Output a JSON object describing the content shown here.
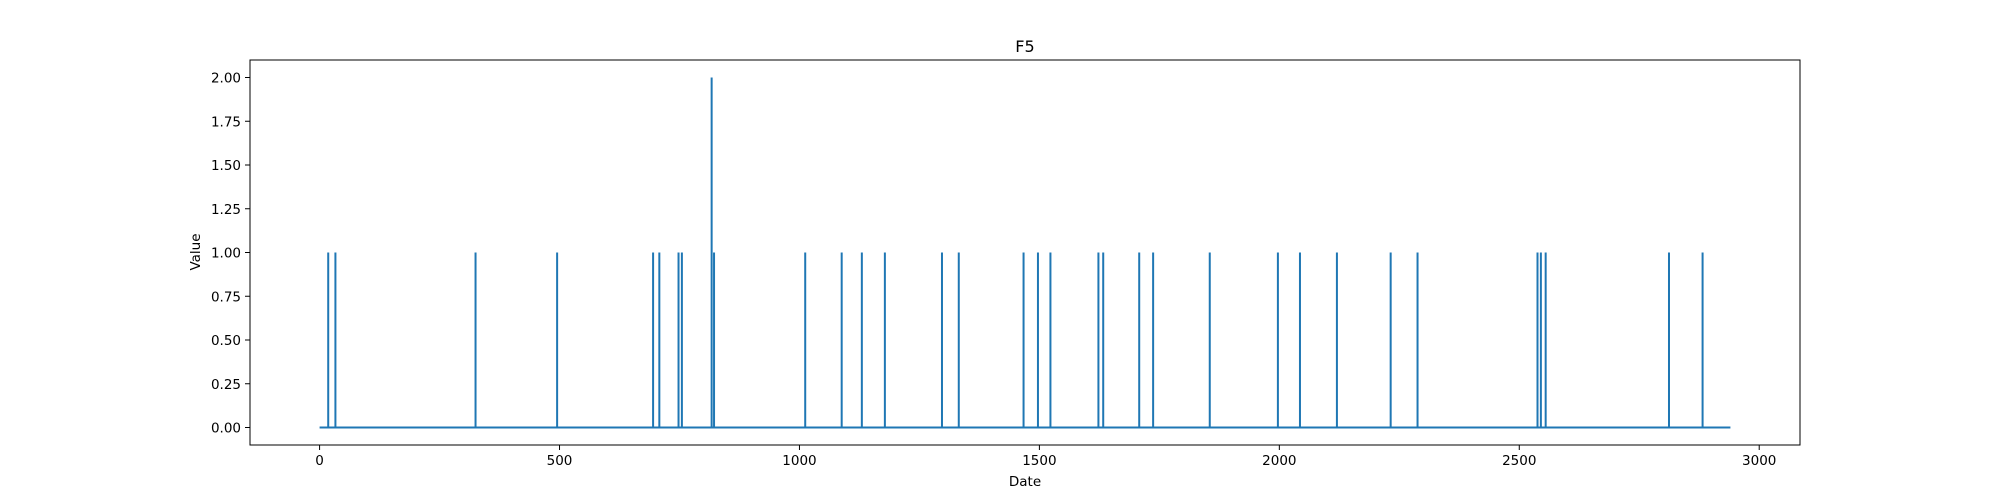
{
  "chart_data": {
    "type": "line",
    "title": "F5",
    "xlabel": "Date",
    "ylabel": "Value",
    "xlim": [
      -145,
      3085
    ],
    "ylim": [
      -0.1,
      2.1
    ],
    "xticks": [
      0,
      500,
      1000,
      1500,
      2000,
      2500,
      3000
    ],
    "yticks": [
      0.0,
      0.25,
      0.5,
      0.75,
      1.0,
      1.25,
      1.5,
      1.75,
      2.0
    ],
    "ytick_labels": [
      "0.00",
      "0.25",
      "0.50",
      "0.75",
      "1.00",
      "1.25",
      "1.50",
      "1.75",
      "2.00"
    ],
    "grid": false,
    "series": [
      {
        "color": "#1f77b4",
        "x_range": [
          0,
          2940
        ],
        "baseline": 0,
        "spikes": [
          {
            "x": 18,
            "value": 1
          },
          {
            "x": 33,
            "value": 1
          },
          {
            "x": 325,
            "value": 1
          },
          {
            "x": 495,
            "value": 1
          },
          {
            "x": 695,
            "value": 1
          },
          {
            "x": 708,
            "value": 1
          },
          {
            "x": 748,
            "value": 1
          },
          {
            "x": 755,
            "value": 1
          },
          {
            "x": 817,
            "value": 2
          },
          {
            "x": 822,
            "value": 1
          },
          {
            "x": 1012,
            "value": 1
          },
          {
            "x": 1088,
            "value": 1
          },
          {
            "x": 1130,
            "value": 1
          },
          {
            "x": 1178,
            "value": 1
          },
          {
            "x": 1297,
            "value": 1
          },
          {
            "x": 1332,
            "value": 1
          },
          {
            "x": 1467,
            "value": 1
          },
          {
            "x": 1497,
            "value": 1
          },
          {
            "x": 1523,
            "value": 1
          },
          {
            "x": 1623,
            "value": 1
          },
          {
            "x": 1633,
            "value": 1
          },
          {
            "x": 1708,
            "value": 1
          },
          {
            "x": 1737,
            "value": 1
          },
          {
            "x": 1855,
            "value": 1
          },
          {
            "x": 1997,
            "value": 1
          },
          {
            "x": 2043,
            "value": 1
          },
          {
            "x": 2120,
            "value": 1
          },
          {
            "x": 2232,
            "value": 1
          },
          {
            "x": 2288,
            "value": 1
          },
          {
            "x": 2538,
            "value": 1
          },
          {
            "x": 2545,
            "value": 1
          },
          {
            "x": 2555,
            "value": 1
          },
          {
            "x": 2812,
            "value": 1
          },
          {
            "x": 2882,
            "value": 1
          }
        ]
      }
    ]
  }
}
